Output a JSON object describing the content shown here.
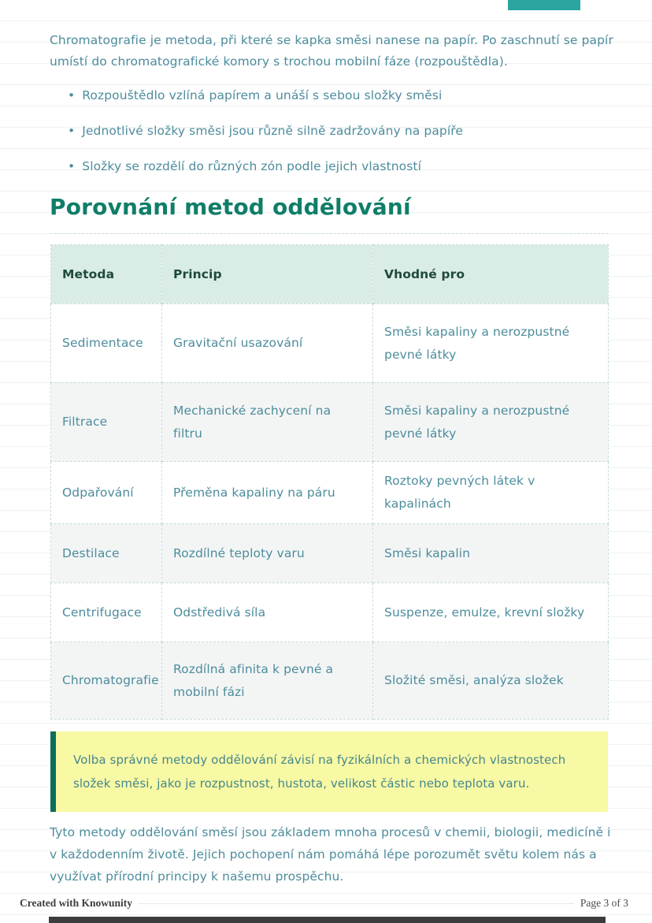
{
  "intro": {
    "paragraph": "Chromatografie je metoda, při které se kapka směsi nanese na papír. Po zaschnutí se papír umístí do chromatografické komory s trochou mobilní fáze (rozpouštědla).",
    "bullet_char": "•",
    "bullets": [
      "Rozpouštědlo vzlíná papírem a unáší s sebou složky směsi",
      "Jednotlivé složky směsi jsou různě silně zadržovány na papíře",
      "Složky se rozdělí do různých zón podle jejich vlastností"
    ]
  },
  "section": {
    "title": "Porovnání metod oddělování"
  },
  "table": {
    "headers": [
      "Metoda",
      "Princip",
      "Vhodné pro"
    ],
    "rows": [
      [
        "Sedimentace",
        "Gravitační usazování",
        "Směsi kapaliny a nerozpustné pevné látky"
      ],
      [
        "Filtrace",
        "Mechanické zachycení na filtru",
        "Směsi kapaliny a nerozpustné pevné látky"
      ],
      [
        "Odpařování",
        "Přeměna kapaliny na páru",
        "Roztoky pevných látek v kapalinách"
      ],
      [
        "Destilace",
        "Rozdílné teploty varu",
        "Směsi kapalin"
      ],
      [
        "Centrifugace",
        "Odstředivá síla",
        "Suspenze, emulze, krevní složky"
      ],
      [
        "Chromatografie",
        "Rozdílná afinita k pevné a mobilní fázi",
        "Složité směsi, analýza složek"
      ]
    ]
  },
  "callout": {
    "text": "Volba správné metody oddělování závisí na fyzikálních a chemických vlastnostech složek směsi, jako je rozpustnost, hustota, velikost částic nebo teplota varu."
  },
  "outro": {
    "paragraph": "Tyto metody oddělování směsí jsou základem mnoha procesů v chemii, biologii, medicíně i v každodenním životě. Jejich pochopení nám pomáhá lépe porozumět světu kolem nás a využívat přírodní principy k našemu prospěchu."
  },
  "footer": {
    "left": "Created with Knowunity",
    "right": "Page 3 of 3"
  },
  "colors": {
    "body_text": "#4d8c9c",
    "heading": "#0f7e68",
    "table_header_bg": "#daece6",
    "table_header_text": "#1e4a3d",
    "row_alt_bg": "#f3f5f5",
    "cell_border": "#c6dcd8",
    "callout_bg": "#f8f9a4",
    "callout_border": "#0e6e5a",
    "top_accent": "#2aa5a0",
    "bottom_bar": "#3c3c3c"
  }
}
